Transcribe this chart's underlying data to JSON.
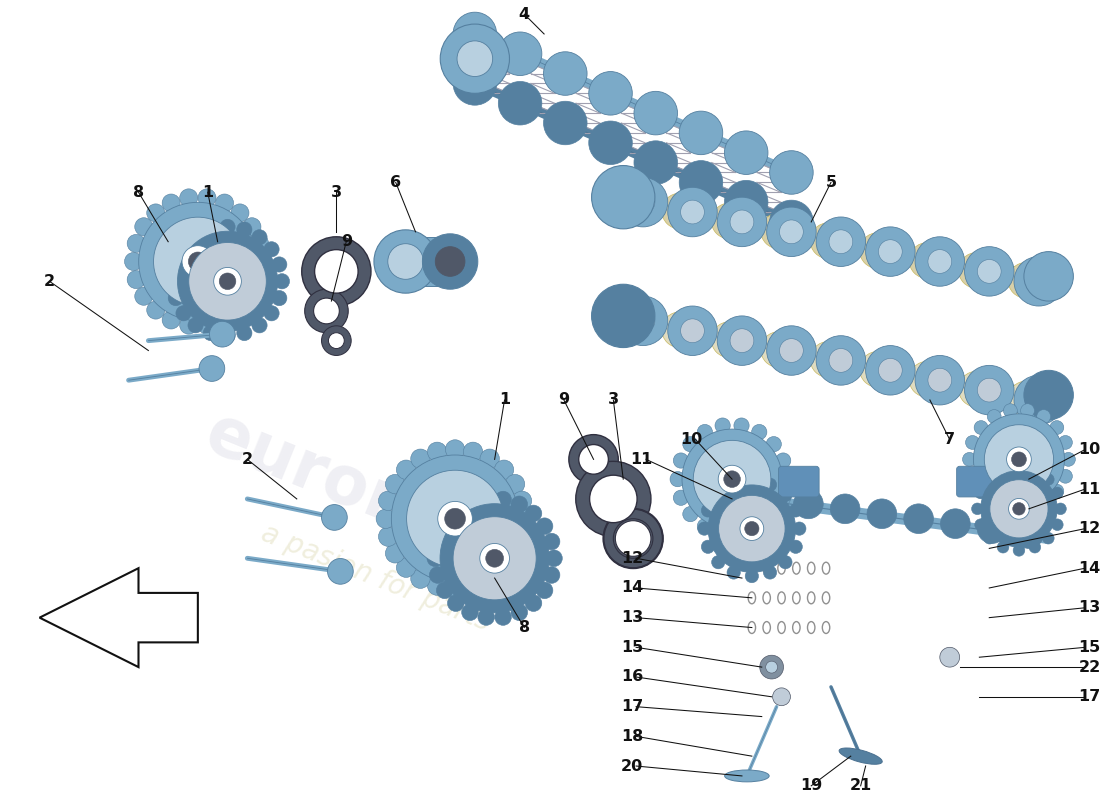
{
  "bg_color": "#ffffff",
  "steel_blue": "#7baac8",
  "steel_dark": "#5580a0",
  "steel_light": "#b8d0e0",
  "steel_mid": "#4a7090",
  "gray_dark": "#505868",
  "gray_mid": "#8090a0",
  "gray_light": "#c0ccd8",
  "cream": "#d8d0a8",
  "gold": "#c8b860",
  "black": "#111111",
  "line_color": "#111111",
  "wm1_color": "#c8c8d8",
  "wm2_color": "#d0cc98",
  "wm1_alpha": 0.28,
  "wm2_alpha": 0.32,
  "label_fs": 11.5
}
